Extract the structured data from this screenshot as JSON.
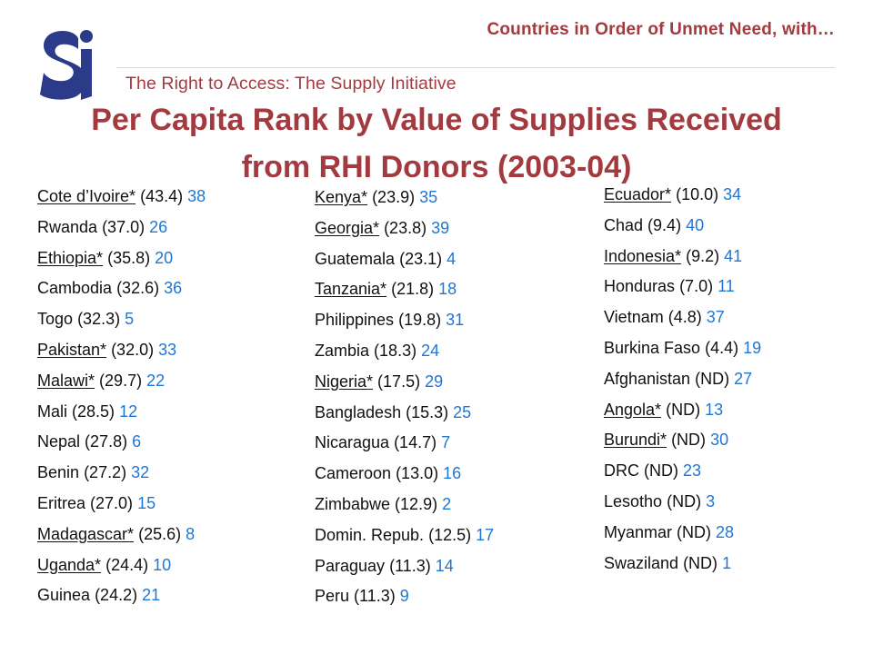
{
  "header": {
    "top_heading": "Countries in Order of Unmet Need, with…",
    "tagline": "The Right to Access: The Supply Initiative",
    "title_line1": "Per Capita Rank by Value of Supplies Received",
    "title_line2": "from RHI Donors (2003-04)"
  },
  "colors": {
    "heading": "#a33a3f",
    "rank": "#1f77d4",
    "text": "#111111",
    "logo": "#2b3b8a"
  },
  "columns": [
    [
      {
        "name": "Cote d’Ivoire*",
        "value": "(43.4)",
        "rank": "38",
        "underline": true
      },
      {
        "name": "Rwanda",
        "value": "(37.0)",
        "rank": "26",
        "underline": false
      },
      {
        "name": "Ethiopia*",
        "value": "(35.8)",
        "rank": "20",
        "underline": true
      },
      {
        "name": "Cambodia",
        "value": "(32.6)",
        "rank": "36",
        "underline": false
      },
      {
        "name": "Togo",
        "value": "(32.3)",
        "rank": "5",
        "underline": false
      },
      {
        "name": "Pakistan*",
        "value": "(32.0)",
        "rank": "33",
        "underline": true
      },
      {
        "name": "Malawi*",
        "value": "(29.7)",
        "rank": "22",
        "underline": true
      },
      {
        "name": "Mali",
        "value": "(28.5)",
        "rank": "12",
        "underline": false
      },
      {
        "name": "Nepal",
        "value": "(27.8)",
        "rank": "6",
        "underline": false
      },
      {
        "name": "Benin",
        "value": "(27.2)",
        "rank": "32",
        "underline": false
      },
      {
        "name": "Eritrea",
        "value": "(27.0)",
        "rank": "15",
        "underline": false
      },
      {
        "name": "Madagascar*",
        "value": "(25.6)",
        "rank": "8",
        "underline": true
      },
      {
        "name": "Uganda*",
        "value": "(24.4)",
        "rank": "10",
        "underline": true
      },
      {
        "name": "Guinea",
        "value": "(24.2)",
        "rank": "21",
        "underline": false
      }
    ],
    [
      {
        "name": "Kenya*",
        "value": "(23.9)",
        "rank": "35",
        "underline": true
      },
      {
        "name": "Georgia*",
        "value": "(23.8)",
        "rank": "39",
        "underline": true
      },
      {
        "name": "Guatemala",
        "value": "(23.1)",
        "rank": "4",
        "underline": false
      },
      {
        "name": "Tanzania*",
        "value": "(21.8)",
        "rank": "18",
        "underline": true
      },
      {
        "name": "Philippines",
        "value": "(19.8)",
        "rank": "31",
        "underline": false
      },
      {
        "name": "Zambia",
        "value": "(18.3)",
        "rank": "24",
        "underline": false
      },
      {
        "name": "Nigeria*",
        "value": "(17.5)",
        "rank": "29",
        "underline": true
      },
      {
        "name": "Bangladesh",
        "value": "(15.3)",
        "rank": "25",
        "underline": false
      },
      {
        "name": "Nicaragua",
        "value": "(14.7)",
        "rank": "7",
        "underline": false
      },
      {
        "name": "Cameroon",
        "value": "(13.0)",
        "rank": "16",
        "underline": false
      },
      {
        "name": "Zimbabwe",
        "value": "(12.9)",
        "rank": "2",
        "underline": false
      },
      {
        "name": "Domin. Repub.",
        "value": "(12.5)",
        "rank": "17",
        "underline": false
      },
      {
        "name": "Paraguay",
        "value": "(11.3)",
        "rank": "14",
        "underline": false
      },
      {
        "name": "Peru",
        "value": "(11.3)",
        "rank": "9",
        "underline": false
      }
    ],
    [
      {
        "name": "Ecuador*",
        "value": "(10.0)",
        "rank": "34",
        "underline": true
      },
      {
        "name": "Chad",
        "value": "(9.4)",
        "rank": "40",
        "underline": false
      },
      {
        "name": "Indonesia*",
        "value": "(9.2)",
        "rank": "41",
        "underline": true
      },
      {
        "name": "Honduras",
        "value": "(7.0)",
        "rank": "11",
        "underline": false
      },
      {
        "name": "Vietnam",
        "value": "(4.8)",
        "rank": "37",
        "underline": false
      },
      {
        "name": "Burkina Faso",
        "value": "(4.4)",
        "rank": "19",
        "underline": false
      },
      {
        "name": "Afghanistan",
        "value": "(ND)",
        "rank": "27",
        "underline": false
      },
      {
        "name": "Angola*",
        "value": "(ND)",
        "rank": "13",
        "underline": true
      },
      {
        "name": "Burundi*",
        "value": "(ND)",
        "rank": "30",
        "underline": true
      },
      {
        "name": "DRC",
        "value": "(ND)",
        "rank": "23",
        "underline": false
      },
      {
        "name": "Lesotho",
        "value": "(ND)",
        "rank": "3",
        "underline": false
      },
      {
        "name": "Myanmar",
        "value": "(ND)",
        "rank": "28",
        "underline": false
      },
      {
        "name": "Swaziland",
        "value": "(ND)",
        "rank": "1",
        "underline": false
      }
    ]
  ]
}
